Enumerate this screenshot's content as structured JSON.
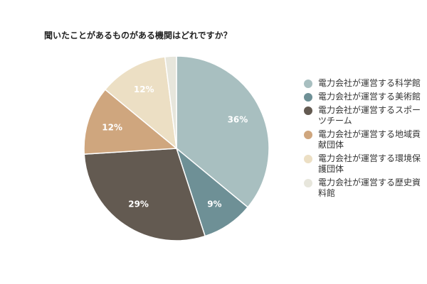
{
  "chart_data": {
    "type": "pie",
    "title": "聞いたことがあるものがある機関はどれですか？",
    "categories": [
      "電力会社が運営する科学館",
      "電力会社が運営する美術館",
      "電力会社が運営するスポーツチーム",
      "電力会社が運営する地域貢献団体",
      "電力会社が運営する環境保護団体",
      "電力会社が運営する歴史資料館"
    ],
    "values": [
      36,
      9,
      29,
      12,
      12,
      2
    ],
    "labels": [
      "36%",
      "9%",
      "29%",
      "12%",
      "12%",
      ""
    ],
    "colors": [
      "#a8bfc0",
      "#6e9096",
      "#635a51",
      "#cfa67e",
      "#ecdfc4",
      "#e7e6dc"
    ],
    "legend_position": "right"
  }
}
